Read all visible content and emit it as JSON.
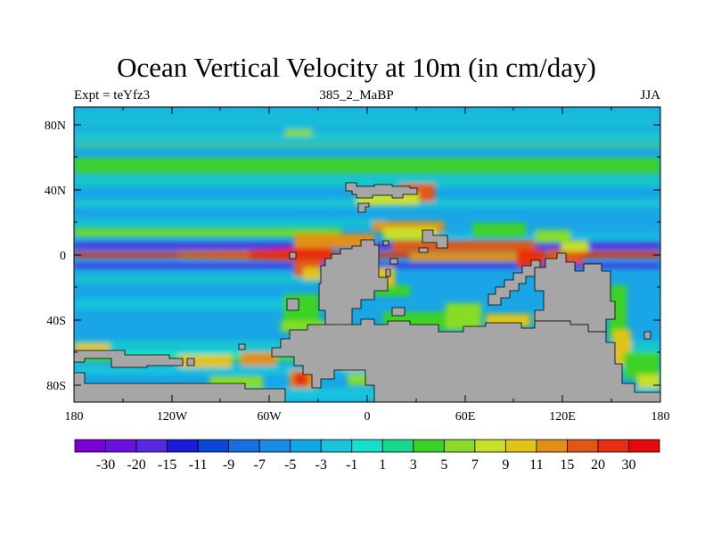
{
  "title": "Ocean Vertical Velocity at 10m (in cm/day)",
  "left_label": "Expt = teYfz3",
  "center_label": "385_2_MaBP",
  "right_label": "JJA",
  "lat_ticks": [
    "80N",
    "40N",
    "0",
    "40S",
    "80S"
  ],
  "lon_ticks": [
    "180",
    "120W",
    "60W",
    "0",
    "60E",
    "120E",
    "180"
  ],
  "colorbar": {
    "labels": [
      "-30",
      "-20",
      "-15",
      "-11",
      "-9",
      "-7",
      "-5",
      "-3",
      "-1",
      "1",
      "3",
      "5",
      "7",
      "9",
      "11",
      "15",
      "20",
      "30"
    ],
    "colors": [
      "#7a00d8",
      "#6a10e0",
      "#5828e4",
      "#1a1ad8",
      "#0a46d8",
      "#1870e0",
      "#1a8ce8",
      "#10a8e4",
      "#18c4dc",
      "#14e0cc",
      "#18d890",
      "#3cd228",
      "#88dc28",
      "#c8e028",
      "#e0c418",
      "#e09018",
      "#e05814",
      "#e82e10",
      "#e80a0a"
    ]
  },
  "land_color": "#a6a6a6",
  "chart_data": {
    "type": "heatmap",
    "title": "Ocean Vertical Velocity at 10m (in cm/day)",
    "variable": "Ocean vertical velocity at 10m",
    "units": "cm/day",
    "experiment": "teYfz3",
    "period": "385_2_MaBP",
    "season": "JJA",
    "lon_range": [
      -180,
      180
    ],
    "lat_range": [
      -90,
      90
    ],
    "contour_levels": [
      -30,
      -20,
      -15,
      -11,
      -9,
      -7,
      -5,
      -3,
      -1,
      1,
      3,
      5,
      7,
      9,
      11,
      15,
      20,
      30
    ]
  }
}
